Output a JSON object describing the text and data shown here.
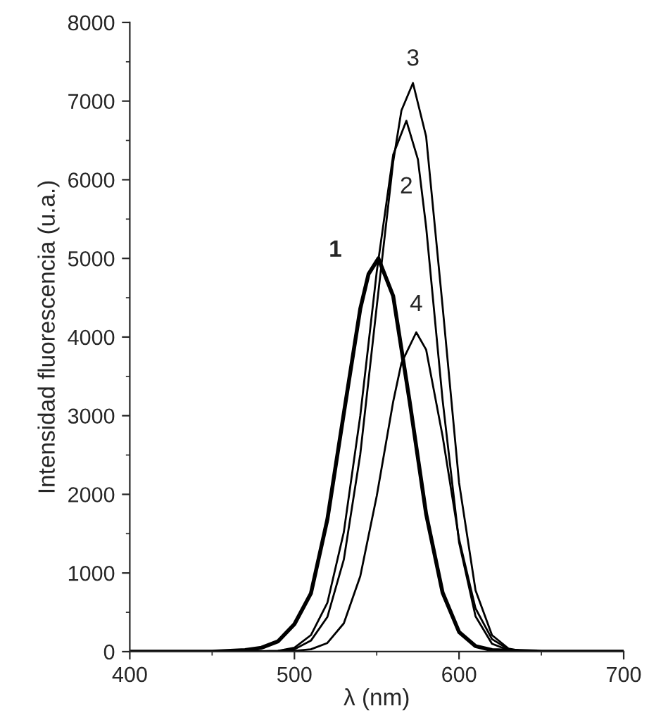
{
  "chart_data": {
    "type": "line",
    "xlabel": "λ (nm)",
    "ylabel": "Intensidad fluorescencia (u.a.)",
    "xlim": [
      400,
      700
    ],
    "xticks": [
      400,
      500,
      600,
      700
    ],
    "ylim": [
      0,
      8000
    ],
    "yticks": [
      0,
      1000,
      2000,
      3000,
      4000,
      5000,
      6000,
      7000,
      8000
    ],
    "grid": false,
    "legend": false,
    "marker": "none",
    "line_style": "solid",
    "series": [
      {
        "color": "#000000",
        "x": [
          400,
          450,
          470,
          480,
          490,
          500,
          510,
          520,
          530,
          540,
          545,
          551,
          560,
          570,
          580,
          590,
          600,
          610,
          620,
          650,
          700
        ],
        "values": [
          0,
          0,
          20,
          50,
          130,
          350,
          740,
          1680,
          3030,
          4360,
          4800,
          5000,
          4520,
          3180,
          1750,
          750,
          250,
          70,
          20,
          0,
          0
        ]
      },
      {
        "color": "#000000",
        "x": [
          400,
          470,
          490,
          500,
          510,
          520,
          530,
          540,
          550,
          560,
          568,
          575,
          580,
          590,
          600,
          610,
          620,
          630,
          650,
          700
        ],
        "values": [
          0,
          0,
          10,
          50,
          210,
          620,
          1520,
          3000,
          4830,
          6320,
          6750,
          6260,
          5400,
          3200,
          1390,
          450,
          100,
          20,
          0,
          0
        ]
      },
      {
        "color": "#000000",
        "x": [
          400,
          470,
          490,
          500,
          510,
          520,
          530,
          540,
          550,
          560,
          565,
          572,
          580,
          590,
          600,
          610,
          620,
          630,
          640,
          650,
          700
        ],
        "values": [
          0,
          0,
          10,
          30,
          140,
          440,
          1170,
          2510,
          4390,
          6230,
          6880,
          7230,
          6550,
          4390,
          2150,
          780,
          210,
          40,
          0,
          0,
          0
        ]
      },
      {
        "color": "#000000",
        "x": [
          400,
          480,
          500,
          510,
          520,
          530,
          540,
          550,
          560,
          565,
          574,
          580,
          590,
          600,
          610,
          620,
          630,
          640,
          650,
          700
        ],
        "values": [
          0,
          0,
          10,
          30,
          110,
          360,
          960,
          1980,
          3180,
          3670,
          4060,
          3840,
          2740,
          1430,
          550,
          160,
          30,
          0,
          0,
          0
        ]
      }
    ],
    "annotations": [
      {
        "text": "1",
        "x": 551,
        "y": 5000
      },
      {
        "text": "2",
        "x": 568,
        "y": 6750
      },
      {
        "text": "3",
        "x": 572,
        "y": 7230
      },
      {
        "text": "4",
        "x": 574,
        "y": 4060
      }
    ]
  }
}
